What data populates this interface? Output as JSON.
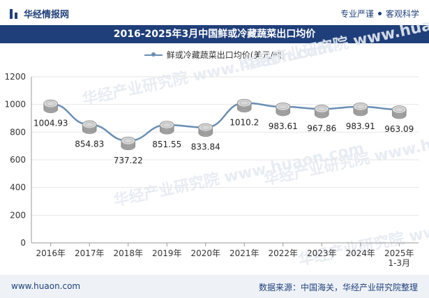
{
  "header": {
    "brand": "华经情报网",
    "tagline_1": "专业严谨",
    "tagline_2": "客观科学"
  },
  "footer": {
    "url": "www.huaon.com",
    "source": "数据来源：中国海关，华经产业研究院整理"
  },
  "colors": {
    "brand": "#1f3f7a",
    "line": "#6a8eb4"
  },
  "chart_data": {
    "type": "line",
    "title": "2016-2025年3月中国鲜或冷藏蔬菜出口均价",
    "series": [
      {
        "name": "鲜或冷藏蔬菜出口均价(美元/吨)",
        "values": [
          1004.93,
          854.83,
          737.22,
          851.55,
          833.84,
          1010.2,
          983.61,
          967.86,
          983.91,
          963.09
        ],
        "labels": [
          "1004.93",
          "854.83",
          "737.22",
          "851.55",
          "833.84",
          "1010.2",
          "983.61",
          "967.86",
          "983.91",
          "963.09"
        ]
      }
    ],
    "categories": [
      "2016年",
      "2017年",
      "2018年",
      "2019年",
      "2020年",
      "2021年",
      "2022年",
      "2023年",
      "2024年",
      "2025年 1-3月"
    ],
    "yticks": [
      0,
      200,
      400,
      600,
      800,
      1000,
      1200
    ],
    "ylim": [
      0,
      1200
    ],
    "legend_position": "top-center",
    "watermark": "华经产业研究院 www.huaon.com"
  }
}
